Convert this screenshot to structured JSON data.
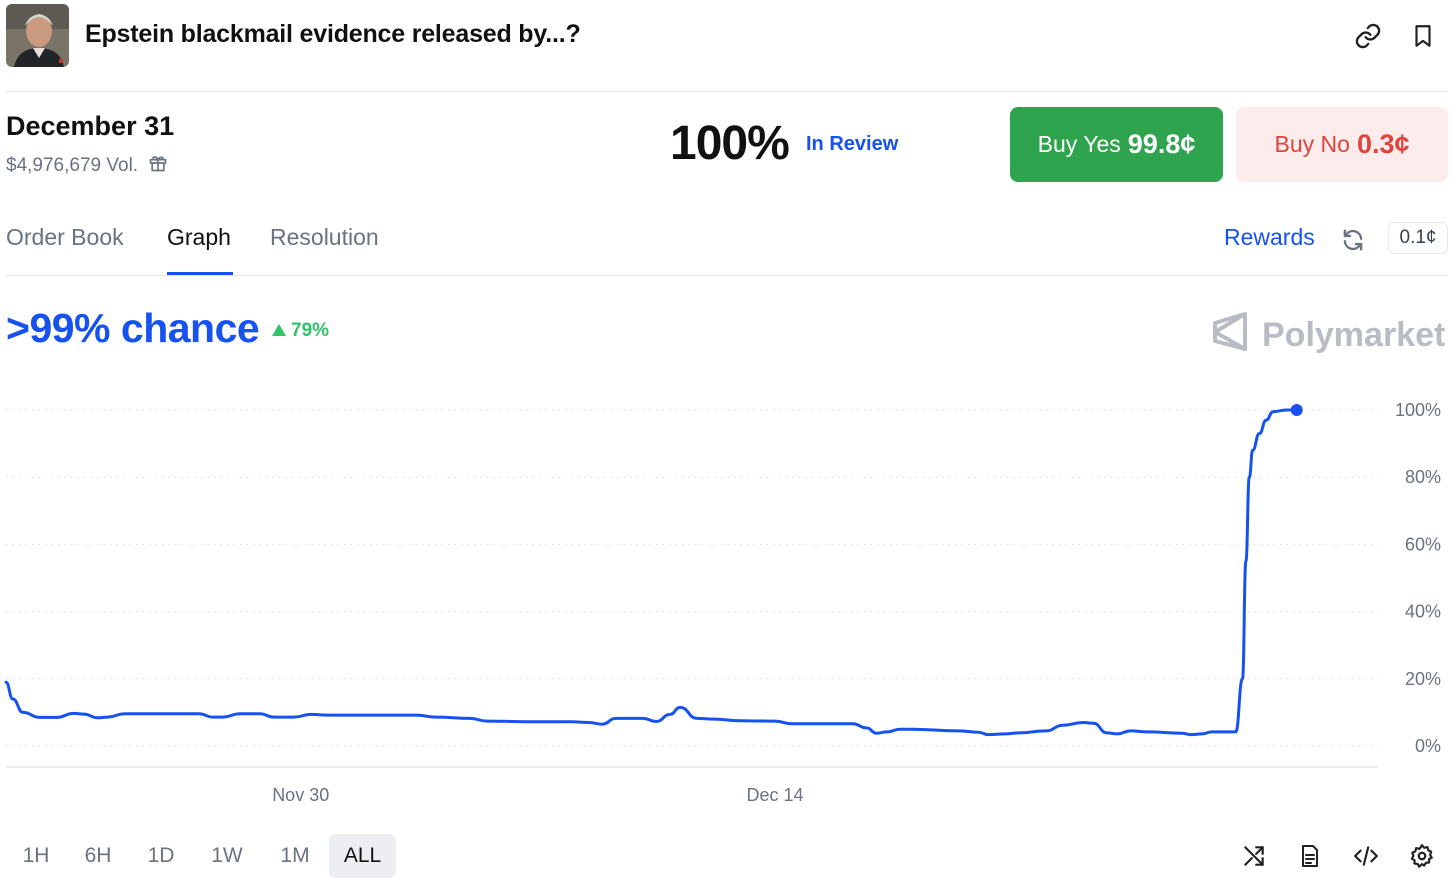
{
  "header": {
    "title": "Epstein blackmail evidence released by...?",
    "link_icon": "link-icon",
    "bookmark_icon": "bookmark-icon"
  },
  "market": {
    "date": "December 31",
    "volume": "$4,976,679 Vol.",
    "probability": "100%",
    "status": "In Review",
    "buy_yes_label": "Buy Yes",
    "buy_yes_price": "99.8¢",
    "buy_no_label": "Buy No",
    "buy_no_price": "0.3¢"
  },
  "tabs": [
    {
      "label": "Order Book"
    },
    {
      "label": "Graph"
    },
    {
      "label": "Resolution"
    }
  ],
  "toolbar": {
    "rewards": "Rewards",
    "tick_size": "0.1¢"
  },
  "summary": {
    "chance": ">99% chance",
    "change": "79%"
  },
  "brand": {
    "name": "Polymarket"
  },
  "colors": {
    "accent": "#1652f0",
    "yes": "#2ea44f",
    "no": "#e0443c",
    "positive": "#2ec46a"
  },
  "ranges": [
    "1H",
    "6H",
    "1D",
    "1W",
    "1M",
    "ALL"
  ],
  "active_range": "ALL",
  "footer_icons": [
    "shuffle-icon",
    "document-icon",
    "code-icon",
    "settings-icon"
  ],
  "chart_data": {
    "type": "line",
    "ylim": [
      0,
      100
    ],
    "yticks": [
      "100%",
      "80%",
      "60%",
      "40%",
      "20%",
      "0%"
    ],
    "xticks": [
      {
        "label": "Nov 30",
        "day": 30
      },
      {
        "label": "Dec 14",
        "day": 44
      }
    ],
    "grid": true,
    "series": [
      {
        "color": "#1652f0",
        "points": [
          [
            21.3,
            19
          ],
          [
            21.5,
            14
          ],
          [
            21.8,
            10
          ],
          [
            22.3,
            8.5
          ],
          [
            22.8,
            8.5
          ],
          [
            23.3,
            9.7
          ],
          [
            23.6,
            9.5
          ],
          [
            24.0,
            8.4
          ],
          [
            24.3,
            8.6
          ],
          [
            24.8,
            9.6
          ],
          [
            26.0,
            9.6
          ],
          [
            27.0,
            9.6
          ],
          [
            27.4,
            8.6
          ],
          [
            27.7,
            8.6
          ],
          [
            28.2,
            9.6
          ],
          [
            28.8,
            9.6
          ],
          [
            29.2,
            8.6
          ],
          [
            29.8,
            8.6
          ],
          [
            30.3,
            9.4
          ],
          [
            30.8,
            9.2
          ],
          [
            32.0,
            9.2
          ],
          [
            33.4,
            9.2
          ],
          [
            34.0,
            8.6
          ],
          [
            35.0,
            8.2
          ],
          [
            35.5,
            7.4
          ],
          [
            37.0,
            7.2
          ],
          [
            38.0,
            7.2
          ],
          [
            38.5,
            7.0
          ],
          [
            38.9,
            6.5
          ],
          [
            39.3,
            8.2
          ],
          [
            40.1,
            8.2
          ],
          [
            40.5,
            7.3
          ],
          [
            40.9,
            9.4
          ],
          [
            41.2,
            11.5
          ],
          [
            41.7,
            8.2
          ],
          [
            42.2,
            8.0
          ],
          [
            43.0,
            7.5
          ],
          [
            44.0,
            7.4
          ],
          [
            44.5,
            6.6
          ],
          [
            46.3,
            6.6
          ],
          [
            46.7,
            5.4
          ],
          [
            47.0,
            3.8
          ],
          [
            47.3,
            4.2
          ],
          [
            47.7,
            5.0
          ],
          [
            48.0,
            5.0
          ],
          [
            49.4,
            4.5
          ],
          [
            50.0,
            4.1
          ],
          [
            50.3,
            3.4
          ],
          [
            50.8,
            3.6
          ],
          [
            51.2,
            3.9
          ],
          [
            52.0,
            4.5
          ],
          [
            52.5,
            6.2
          ],
          [
            53.1,
            7.0
          ],
          [
            53.4,
            6.8
          ],
          [
            53.8,
            3.9
          ],
          [
            54.1,
            3.6
          ],
          [
            54.5,
            4.5
          ],
          [
            55.0,
            4.2
          ],
          [
            56.0,
            3.8
          ],
          [
            56.3,
            3.4
          ],
          [
            56.6,
            3.6
          ],
          [
            56.9,
            4.2
          ],
          [
            57.6,
            4.2
          ],
          [
            57.8,
            20
          ],
          [
            57.9,
            55
          ],
          [
            58.0,
            80
          ],
          [
            58.1,
            88
          ],
          [
            58.3,
            93
          ],
          [
            58.5,
            97
          ],
          [
            58.7,
            99.5
          ],
          [
            59.1,
            100
          ],
          [
            59.4,
            100
          ]
        ]
      }
    ]
  }
}
